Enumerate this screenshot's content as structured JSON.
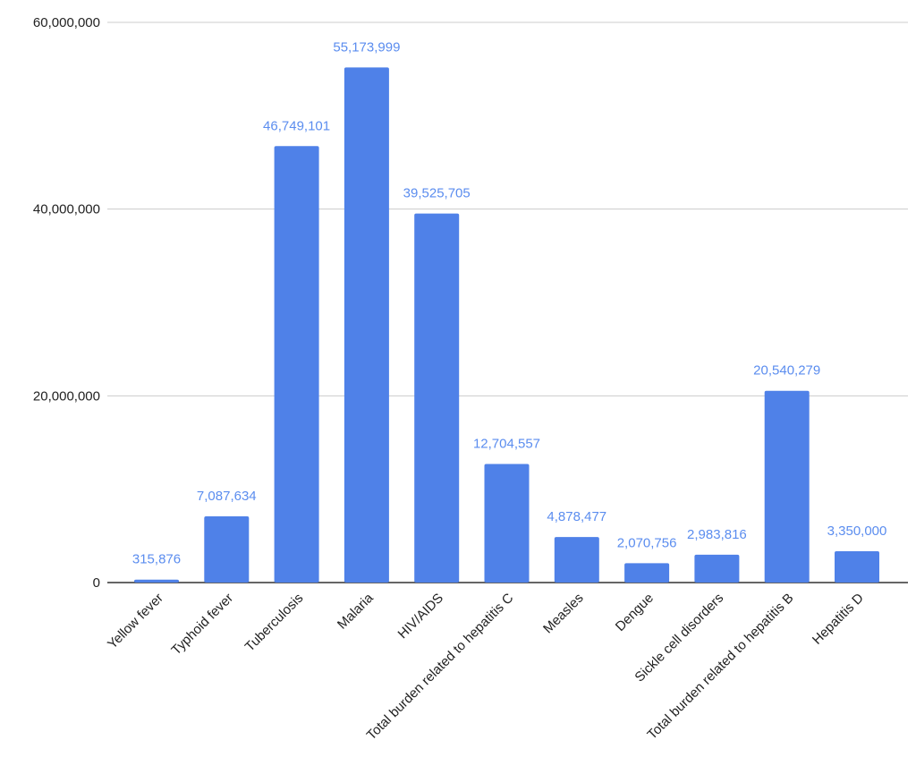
{
  "chart_data": {
    "type": "bar",
    "title": "",
    "xlabel": "",
    "ylabel": "",
    "ylim": [
      0,
      60000000
    ],
    "yticks": [
      0,
      20000000,
      40000000,
      60000000
    ],
    "ytick_labels": [
      "0",
      "20,000,000",
      "40,000,000",
      "60,000,000"
    ],
    "grid": true,
    "legend": "none",
    "bar_color": "#4f81e8",
    "label_color": "#5b8def",
    "categories": [
      "Yellow fever",
      "Typhoid fever",
      "Tuberculosis",
      "Malaria",
      "HIV/AIDS",
      "Total burden related to hepatitis C",
      "Measles",
      "Dengue",
      "Sickle cell disorders",
      "Total burden related to hepatitis B",
      "Hepatitis D"
    ],
    "values": [
      315876,
      7087634,
      46749101,
      55173999,
      39525705,
      12704557,
      4878477,
      2070756,
      2983816,
      20540279,
      3350000
    ],
    "data_labels": [
      "315,876",
      "7,087,634",
      "46,749,101",
      "55,173,999",
      "39,525,705",
      "12,704,557",
      "4,878,477",
      "2,070,756",
      "2,983,816",
      "20,540,279",
      "3,350,000"
    ]
  }
}
